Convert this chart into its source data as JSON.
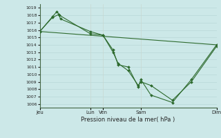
{
  "bg_color": "#cce8e8",
  "grid_color": "#b8d8d8",
  "vgrid_color": "#c8d8d0",
  "line_color": "#2d6a2d",
  "marker_color": "#2d6a2d",
  "xlabel_text": "Pression niveau de la mer( hPa )",
  "ylim": [
    1005.5,
    1019.5
  ],
  "yticks": [
    1006,
    1007,
    1008,
    1009,
    1010,
    1011,
    1012,
    1013,
    1014,
    1015,
    1016,
    1017,
    1018,
    1019
  ],
  "xlim": [
    0,
    7
  ],
  "xtick_positions": [
    0,
    2,
    2.5,
    4,
    7
  ],
  "xtick_labels": [
    "Jeu",
    "Lun",
    "Ven",
    "Sam",
    "Dim"
  ],
  "vgrid_positions": [
    0,
    2,
    2.5,
    4,
    7
  ],
  "series1_x": [
    0.0,
    0.5,
    0.75,
    0.82,
    2.0,
    2.5,
    2.9,
    3.1,
    3.5,
    3.9,
    4.0,
    4.4,
    5.25,
    6.0,
    7.0
  ],
  "series1_y": [
    1015.8,
    1017.7,
    1018.1,
    1017.5,
    1015.8,
    1015.3,
    1013.0,
    1011.5,
    1010.5,
    1008.5,
    1009.0,
    1008.5,
    1006.5,
    1009.0,
    1013.8
  ],
  "series2_x": [
    0.0,
    0.5,
    0.68,
    0.78,
    2.0,
    2.5,
    2.9,
    3.1,
    3.5,
    3.9,
    4.0,
    4.4,
    5.25,
    6.0,
    7.0
  ],
  "series2_y": [
    1015.8,
    1017.8,
    1018.5,
    1018.0,
    1015.5,
    1015.3,
    1013.3,
    1011.3,
    1011.0,
    1008.3,
    1009.3,
    1007.2,
    1006.2,
    1009.3,
    1014.0
  ],
  "series3_x": [
    0.0,
    7.0
  ],
  "series3_y": [
    1015.8,
    1014.0
  ]
}
